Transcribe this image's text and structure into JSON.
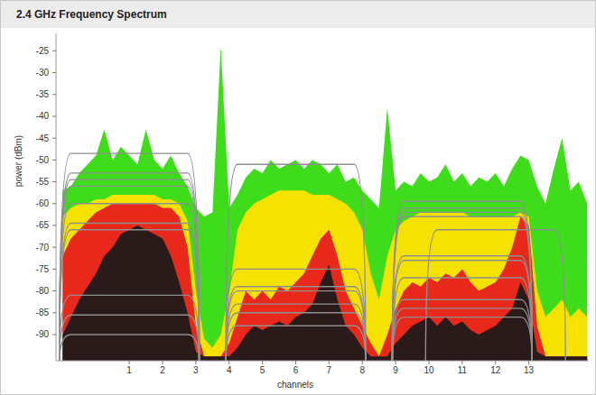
{
  "chart_data": {
    "type": "area",
    "title": "2.4 GHz Frequency Spectrum",
    "x_label": "channels",
    "y_label": "power (dBm)",
    "xlim": [
      -1.2,
      14.8
    ],
    "ylim": [
      -96,
      -21
    ],
    "xticks": [
      1,
      2,
      3,
      4,
      5,
      6,
      7,
      8,
      9,
      10,
      11,
      12,
      13
    ],
    "yticks": [
      -25,
      -30,
      -35,
      -40,
      -45,
      -50,
      -55,
      -60,
      -65,
      -70,
      -75,
      -80,
      -85,
      -90
    ],
    "grid": false,
    "x": [
      -1,
      -0.75,
      -0.5,
      -0.25,
      0,
      0.25,
      0.5,
      0.75,
      1,
      1.25,
      1.5,
      1.75,
      2,
      2.25,
      2.5,
      2.75,
      3,
      3.25,
      3.5,
      3.75,
      4,
      4.25,
      4.5,
      4.75,
      5,
      5.25,
      5.5,
      5.75,
      6,
      6.25,
      6.5,
      6.75,
      7,
      7.25,
      7.5,
      7.75,
      8,
      8.25,
      8.5,
      8.75,
      9,
      9.25,
      9.5,
      9.75,
      10,
      10.25,
      10.5,
      10.75,
      11,
      11.25,
      11.5,
      11.75,
      12,
      12.25,
      12.5,
      12.75,
      13,
      13.25,
      13.5,
      13.75,
      14,
      14.25,
      14.5,
      14.75
    ],
    "series": [
      {
        "type": "area",
        "color": "#3fdc1c",
        "values": [
          -57,
          -56,
          -53,
          -51,
          -49,
          -43,
          -50,
          -47,
          -49,
          -51,
          -43,
          -50,
          -52,
          -49,
          -53,
          -56,
          -61,
          -63,
          -62,
          -24,
          -61,
          -58,
          -54,
          -52,
          -53,
          -50,
          -52,
          -51,
          -50,
          -52,
          -50,
          -51,
          -53,
          -51,
          -55,
          -54,
          -57,
          -59,
          -61,
          -38,
          -57,
          -55,
          -56,
          -53,
          -55,
          -54,
          -51,
          -55,
          -53,
          -56,
          -54,
          -55,
          -53,
          -56,
          -52,
          -49,
          -50,
          -56,
          -60,
          -52,
          -45,
          -57,
          -55,
          -60
        ]
      },
      {
        "type": "area",
        "color": "#f6e200",
        "values": [
          -63,
          -61,
          -60,
          -60,
          -59,
          -59,
          -58,
          -58,
          -58,
          -58,
          -58,
          -58,
          -59,
          -59,
          -60,
          -64,
          -80,
          -91,
          -93,
          -90,
          -80,
          -66,
          -62,
          -60,
          -59,
          -58,
          -57,
          -57,
          -57,
          -57,
          -58,
          -58,
          -58,
          -59,
          -60,
          -62,
          -66,
          -76,
          -82,
          -72,
          -66,
          -64,
          -63,
          -62,
          -62,
          -62,
          -62,
          -62,
          -62,
          -63,
          -63,
          -63,
          -63,
          -63,
          -63,
          -62,
          -63,
          -80,
          -86,
          -84,
          -82,
          -86,
          -84,
          -86
        ]
      },
      {
        "type": "area",
        "color": "#e8281a",
        "values": [
          -72,
          -68,
          -66,
          -64,
          -62,
          -61,
          -60,
          -60,
          -60,
          -60,
          -60,
          -60,
          -61,
          -61,
          -63,
          -70,
          -88,
          -95,
          -95,
          -95,
          -92,
          -86,
          -80,
          -82,
          -80,
          -82,
          -79,
          -80,
          -78,
          -76,
          -72,
          -68,
          -66,
          -72,
          -80,
          -84,
          -88,
          -92,
          -95,
          -90,
          -84,
          -80,
          -78,
          -79,
          -77,
          -78,
          -76,
          -77,
          -75,
          -78,
          -80,
          -79,
          -78,
          -75,
          -70,
          -63,
          -65,
          -88,
          -95,
          -95,
          -95,
          -95,
          -95,
          -95
        ]
      },
      {
        "type": "area",
        "color": "#2b1a1a",
        "values": [
          -90,
          -86,
          -82,
          -79,
          -76,
          -72,
          -70,
          -67,
          -66,
          -65,
          -66,
          -67,
          -68,
          -72,
          -78,
          -85,
          -94,
          -95,
          -95,
          -95,
          -95,
          -93,
          -90,
          -88,
          -89,
          -88,
          -87,
          -88,
          -86,
          -85,
          -83,
          -78,
          -74,
          -82,
          -88,
          -90,
          -93,
          -95,
          -95,
          -95,
          -92,
          -90,
          -88,
          -87,
          -86,
          -88,
          -86,
          -88,
          -87,
          -89,
          -90,
          -89,
          -88,
          -86,
          -84,
          -78,
          -82,
          -94,
          -95,
          -95,
          -95,
          -95,
          -95,
          -95
        ]
      }
    ],
    "networks": {
      "color": "#8f8f8f",
      "channel": [
        1,
        1,
        1,
        1,
        1,
        1,
        1,
        1,
        1,
        1,
        6,
        6,
        6,
        6,
        6,
        6,
        6,
        11,
        11,
        11,
        11,
        11,
        11,
        11,
        11,
        11,
        11,
        12
      ],
      "power": [
        -48.5,
        -53,
        -54.5,
        -56,
        -60,
        -64.5,
        -66,
        -81,
        -85.5,
        -90,
        -51,
        -75,
        -79,
        -80,
        -83,
        -85,
        -88,
        -59.5,
        -61,
        -62,
        -63,
        -72,
        -73,
        -77,
        -82,
        -84,
        -86,
        -66
      ]
    }
  }
}
